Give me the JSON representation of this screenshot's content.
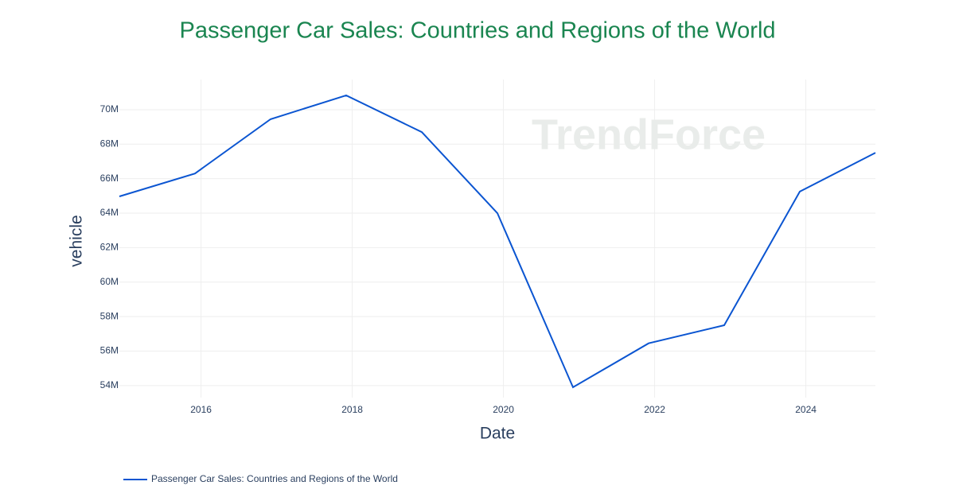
{
  "chart_data": {
    "type": "line",
    "title": "Passenger Car Sales: Countries and Regions of the World",
    "watermark": "TrendForce",
    "x_label": "Date",
    "y_label": "vehicle",
    "x": [
      2014.92,
      2015.92,
      2016.92,
      2017.92,
      2018.92,
      2019.92,
      2020.92,
      2021.92,
      2022.92,
      2023.92,
      2024.92
    ],
    "series": [
      {
        "name": "Passenger Car Sales: Countries and Regions of the World",
        "color": "#0b55d1",
        "values": [
          64970000,
          66300000,
          69450000,
          70830000,
          68700000,
          64000000,
          53900000,
          56450000,
          57500000,
          65250000,
          67500000
        ]
      }
    ],
    "xlim": [
      2014.92,
      2024.92
    ],
    "xticks": [
      2016,
      2018,
      2020,
      2022,
      2024
    ],
    "ylim": [
      53300000,
      71750000
    ],
    "yticks": [
      {
        "value": 54000000,
        "label": "54M"
      },
      {
        "value": 56000000,
        "label": "56M"
      },
      {
        "value": 58000000,
        "label": "58M"
      },
      {
        "value": 60000000,
        "label": "60M"
      },
      {
        "value": 62000000,
        "label": "62M"
      },
      {
        "value": 64000000,
        "label": "64M"
      },
      {
        "value": 66000000,
        "label": "66M"
      },
      {
        "value": 68000000,
        "label": "68M"
      },
      {
        "value": 70000000,
        "label": "70M"
      }
    ],
    "grid": true,
    "legend": "bottom-left"
  }
}
